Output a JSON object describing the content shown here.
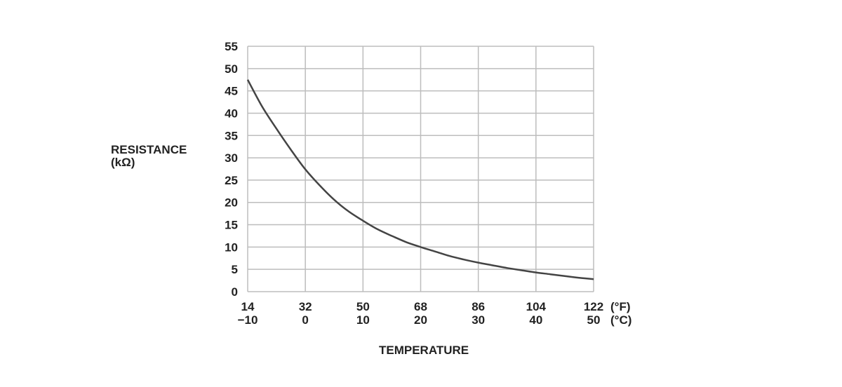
{
  "chart_data": {
    "type": "line",
    "ylabel_line1": "RESISTANCE",
    "ylabel_line2": "(kΩ)",
    "xlabel": "TEMPERATURE",
    "x_unit_f": "(°F)",
    "x_unit_c": "(°C)",
    "x_ticks_f": [
      "14",
      "32",
      "50",
      "68",
      "86",
      "104",
      "122"
    ],
    "x_ticks_c": [
      "−10",
      "0",
      "10",
      "20",
      "30",
      "40",
      "50"
    ],
    "y_ticks": [
      "0",
      "5",
      "10",
      "15",
      "20",
      "25",
      "30",
      "35",
      "40",
      "45",
      "50",
      "55"
    ],
    "xlim": [
      -10,
      50
    ],
    "ylim": [
      0,
      55
    ],
    "grid": true,
    "series": [
      {
        "x": [
          -10,
          -7.5,
          -5,
          -2.5,
          0,
          2.5,
          5,
          7.5,
          10,
          12.5,
          15,
          17.5,
          20,
          22.5,
          25,
          27.5,
          30,
          32.5,
          35,
          37.5,
          40,
          42.5,
          45,
          47.5,
          50
        ],
        "values": [
          47.5,
          41.5,
          36.5,
          31.8,
          27.4,
          23.8,
          20.6,
          18.0,
          15.9,
          14.0,
          12.5,
          11.1,
          10.0,
          9.0,
          8.0,
          7.2,
          6.5,
          5.9,
          5.3,
          4.8,
          4.3,
          3.9,
          3.5,
          3.1,
          2.8
        ]
      }
    ],
    "colors": {
      "grid": "#bdbdbd",
      "line": "#444444",
      "text": "#222222"
    }
  }
}
